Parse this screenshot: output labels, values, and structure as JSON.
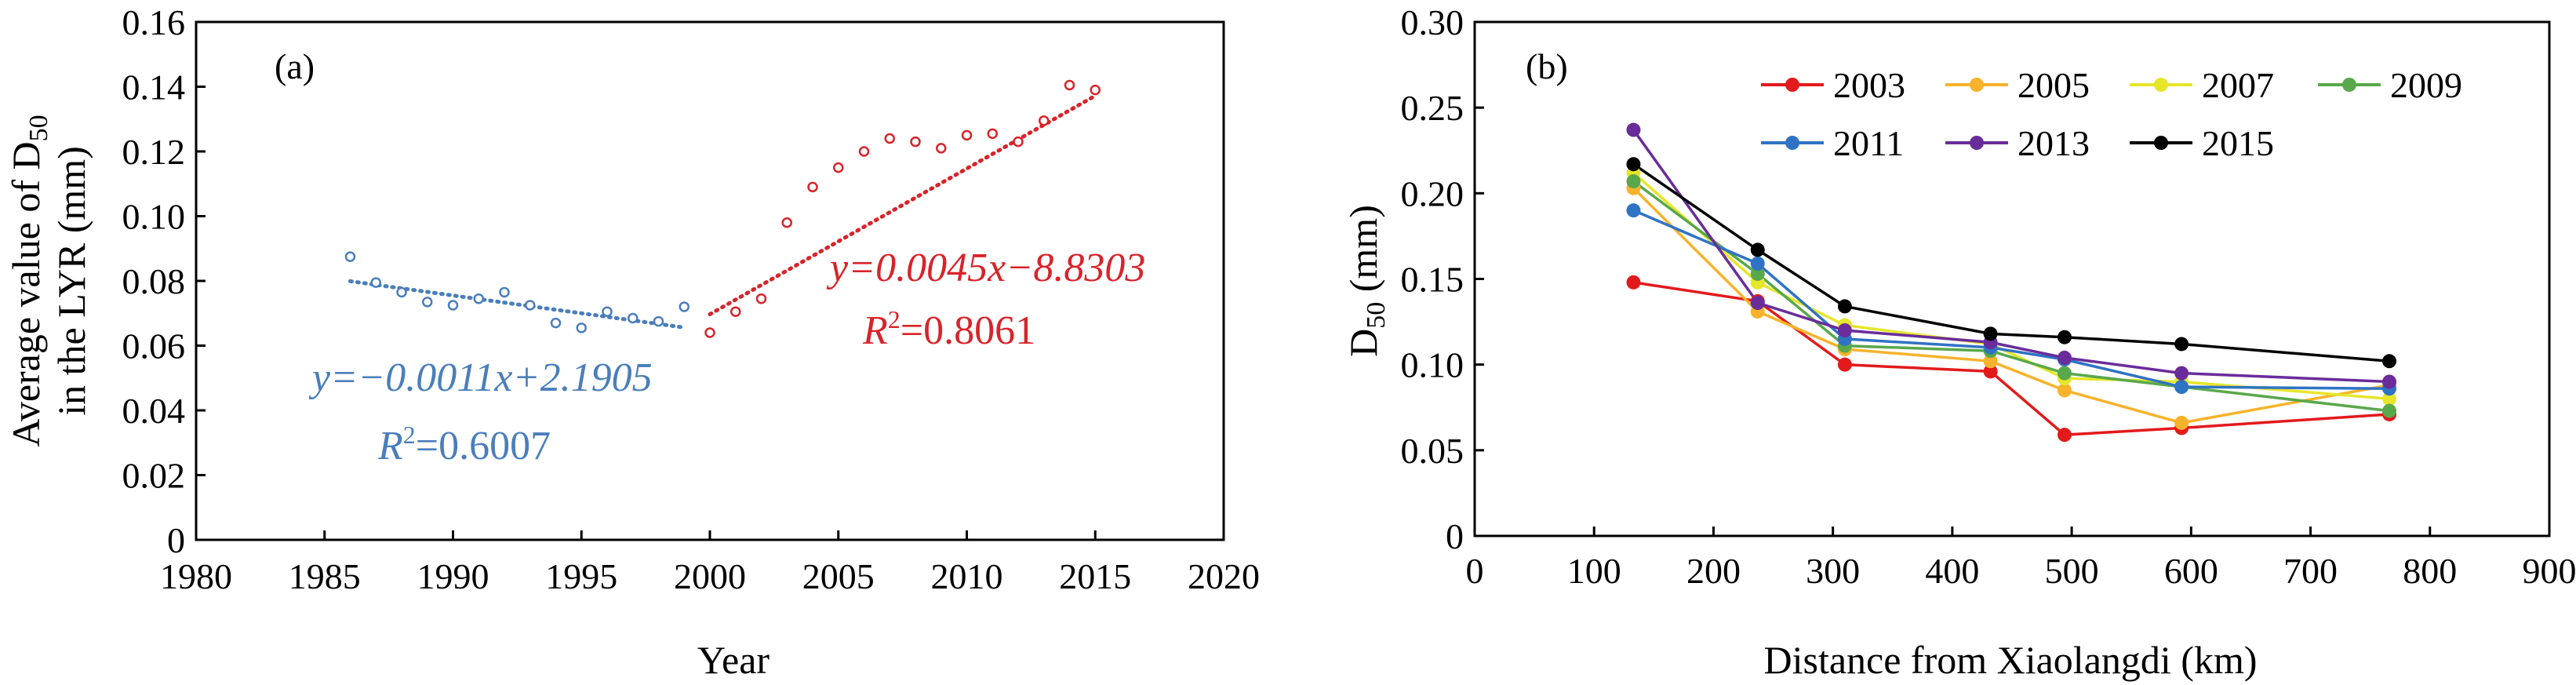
{
  "chart_data": [
    {
      "type": "scatter",
      "panel_label": "(a)",
      "xlabel": "Year",
      "ylabel_line1": "Average value of D",
      "ylabel_sub": "50",
      "ylabel_line2": "in the LYR (mm)",
      "xlim": [
        1980,
        2020
      ],
      "ylim": [
        0,
        0.16
      ],
      "x_ticks": [
        "1980",
        "1985",
        "1990",
        "1995",
        "2000",
        "2005",
        "2010",
        "2015",
        "2020"
      ],
      "y_ticks": [
        "0",
        "0.02",
        "0.04",
        "0.06",
        "0.08",
        "0.10",
        "0.12",
        "0.14",
        "0.16"
      ],
      "grid": false,
      "series": [
        {
          "color": "#4a7ebb",
          "marker": "open-circle",
          "x": [
            1986,
            1987,
            1988,
            1989,
            1990,
            1991,
            1992,
            1993,
            1994,
            1995,
            1996,
            1997,
            1998,
            1999
          ],
          "y": [
            0.0875,
            0.0795,
            0.0765,
            0.0735,
            0.0725,
            0.0745,
            0.0765,
            0.0725,
            0.067,
            0.0655,
            0.0705,
            0.0685,
            0.0675,
            0.072
          ],
          "trendline": {
            "style": "dotted",
            "x": [
              1986,
              1999
            ],
            "y": [
              0.0799,
              0.0656
            ]
          },
          "equation": "y=−0.0011x+2.1905",
          "r2_label": "R",
          "r2_sup": "2",
          "r2_value": "=0.6007"
        },
        {
          "color": "#d9232a",
          "marker": "open-circle",
          "x": [
            2000,
            2001,
            2002,
            2003,
            2004,
            2005,
            2006,
            2007,
            2008,
            2009,
            2010,
            2011,
            2012,
            2013,
            2014,
            2015
          ],
          "y": [
            0.064,
            0.0705,
            0.0745,
            0.098,
            0.109,
            0.115,
            0.12,
            0.124,
            0.123,
            0.121,
            0.125,
            0.1255,
            0.123,
            0.1295,
            0.1405,
            0.139
          ],
          "trendline": {
            "style": "dotted",
            "x": [
              2000,
              2015
            ],
            "y": [
              0.0697,
              0.1372
            ]
          },
          "equation": "y=0.0045x−8.8303",
          "r2_label": "R",
          "r2_sup": "2",
          "r2_value": "=0.8061"
        }
      ]
    },
    {
      "type": "line",
      "panel_label": "(b)",
      "xlabel": "Distance from Xiaolangdi (km)",
      "ylabel_main": "D",
      "ylabel_sub": "50",
      "ylabel_unit": " (mm)",
      "xlim": [
        0,
        900
      ],
      "ylim": [
        0,
        0.3
      ],
      "x_ticks": [
        "0",
        "100",
        "200",
        "300",
        "400",
        "500",
        "600",
        "700",
        "800",
        "900"
      ],
      "y_ticks": [
        "0",
        "0.05",
        "0.10",
        "0.15",
        "0.20",
        "0.25",
        "0.30"
      ],
      "grid": false,
      "legend_position": "top",
      "x": [
        133,
        237,
        310,
        432,
        494,
        592,
        766
      ],
      "series": [
        {
          "name": "2003",
          "color": "#e31a1c",
          "values": [
            0.148,
            0.137,
            0.1,
            0.096,
            0.059,
            0.063,
            0.071
          ]
        },
        {
          "name": "2005",
          "color": "#f7b32b",
          "values": [
            0.203,
            0.131,
            0.109,
            0.102,
            0.085,
            0.066,
            0.088
          ]
        },
        {
          "name": "2007",
          "color": "#e6e62b",
          "values": [
            0.212,
            0.148,
            0.123,
            0.112,
            0.092,
            0.09,
            0.08
          ]
        },
        {
          "name": "2009",
          "color": "#59a84b",
          "values": [
            0.207,
            0.153,
            0.111,
            0.108,
            0.095,
            0.087,
            0.073
          ]
        },
        {
          "name": "2011",
          "color": "#2f73c4",
          "values": [
            0.19,
            0.159,
            0.115,
            0.11,
            0.103,
            0.087,
            0.086
          ]
        },
        {
          "name": "2013",
          "color": "#6a2c9a",
          "values": [
            0.237,
            0.136,
            0.12,
            0.113,
            0.104,
            0.095,
            0.09
          ]
        },
        {
          "name": "2015",
          "color": "#000000",
          "values": [
            0.217,
            0.167,
            0.134,
            0.118,
            0.116,
            0.112,
            0.102
          ]
        }
      ]
    }
  ]
}
